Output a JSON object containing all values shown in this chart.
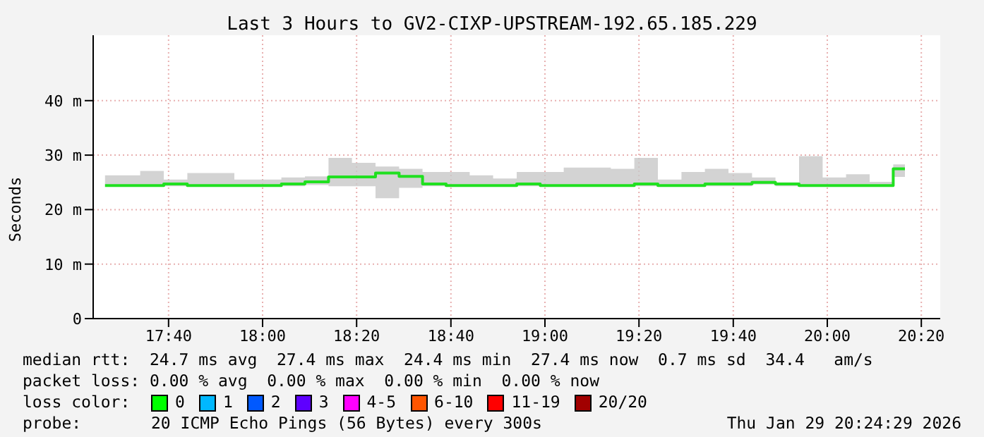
{
  "chart_data": {
    "type": "step",
    "title": "Last 3 Hours to GV2-CIXP-UPSTREAM-192.65.185.229",
    "ylabel": "Seconds",
    "x": [
      17.442,
      17.525,
      17.608,
      17.692,
      17.775,
      17.858,
      17.942,
      18.025,
      18.108,
      18.192,
      18.275,
      18.358,
      18.442,
      18.525,
      18.608,
      18.692,
      18.775,
      18.858,
      18.942,
      19.025,
      19.108,
      19.192,
      19.275,
      19.358,
      19.442,
      19.525,
      19.608,
      19.692,
      19.775,
      19.858,
      19.942,
      20.025,
      20.108,
      20.192,
      20.275
    ],
    "series": [
      {
        "color": "#20e020",
        "values": [
          24.4,
          24.4,
          24.4,
          24.7,
          24.4,
          24.4,
          24.4,
          24.4,
          24.7,
          25.1,
          26.0,
          26.0,
          26.7,
          26.1,
          24.7,
          24.4,
          24.4,
          24.4,
          24.7,
          24.4,
          24.4,
          24.4,
          24.4,
          24.7,
          24.4,
          24.4,
          24.7,
          24.7,
          25.0,
          24.7,
          24.4,
          24.4,
          24.4,
          24.4,
          27.5
        ],
        "lower": [
          24.2,
          24.2,
          24.2,
          24.3,
          24.2,
          24.2,
          24.2,
          24.2,
          24.3,
          24.5,
          24.3,
          24.3,
          22.1,
          24.0,
          24.3,
          24.2,
          24.2,
          24.2,
          24.3,
          24.2,
          24.2,
          24.2,
          24.2,
          24.3,
          24.2,
          24.2,
          24.3,
          24.3,
          24.6,
          24.3,
          24.2,
          24.2,
          24.2,
          24.2,
          26.0
        ],
        "upper": [
          26.3,
          26.3,
          27.1,
          25.5,
          26.7,
          26.7,
          25.5,
          25.5,
          25.9,
          26.1,
          29.5,
          28.6,
          27.9,
          27.5,
          26.9,
          26.9,
          26.3,
          25.7,
          26.9,
          26.9,
          27.7,
          27.7,
          27.5,
          29.5,
          25.5,
          26.9,
          27.5,
          26.7,
          25.9,
          25.0,
          29.8,
          25.9,
          26.5,
          25.1,
          28.3
        ]
      }
    ],
    "xlim": [
      17.4,
      20.4
    ],
    "xticks": [
      {
        "value": 17.667,
        "label": "17:40"
      },
      {
        "value": 18,
        "label": "18:00"
      },
      {
        "value": 18.333,
        "label": "18:20"
      },
      {
        "value": 18.667,
        "label": "18:40"
      },
      {
        "value": 19,
        "label": "19:00"
      },
      {
        "value": 19.333,
        "label": "19:20"
      },
      {
        "value": 19.667,
        "label": "19:40"
      },
      {
        "value": 20,
        "label": "20:00"
      },
      {
        "value": 20.333,
        "label": "20:20"
      }
    ],
    "ylim": [
      0,
      52
    ],
    "yticks": [
      0,
      {
        "value": 10,
        "label": "10 m"
      },
      {
        "value": 20,
        "label": "20 m"
      },
      {
        "value": 30,
        "label": "30 m"
      },
      {
        "value": 40,
        "label": "40 m"
      }
    ],
    "grid": true,
    "annotations": [
      "median rtt:  24.7 ms avg  27.4 ms max  24.4 ms min  27.4 ms now  0.7 ms sd  34.4   am/s",
      "packet loss: 0.00 % avg  0.00 % max  0.00 % min  0.00 % now",
      "loss color:",
      "0",
      "1",
      "2",
      "3",
      "4-5",
      "6-10",
      "11-19",
      "20/20",
      "probe:",
      "20 ICMP Echo Pings (56 Bytes) every 300s",
      "Thu Jan 29 20:24:29 2026"
    ]
  }
}
